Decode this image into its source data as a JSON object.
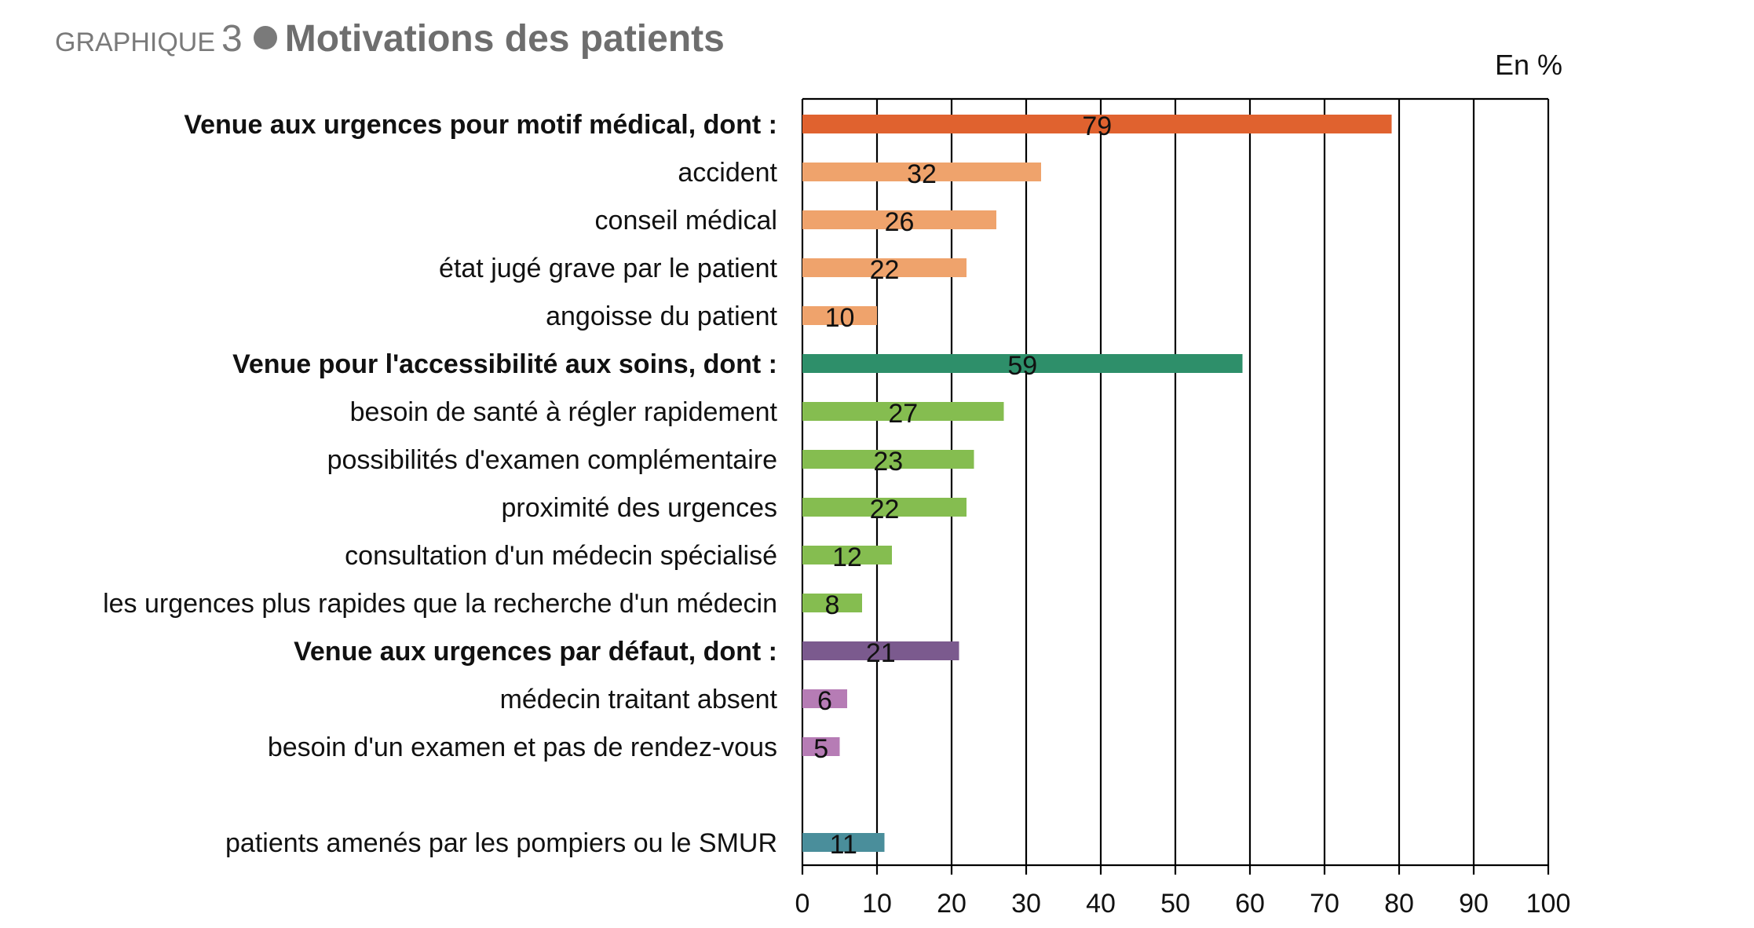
{
  "title": {
    "prefix": "GRAPHIQUE",
    "number": "3",
    "main": "Motivations des patients"
  },
  "unit": "En %",
  "colors": {
    "motif_medical_total": "#e0622f",
    "motif_medical_sub": "#efa36c",
    "accessibilite_total": "#2e8f6a",
    "accessibilite_sub": "#85bd50",
    "defaut_total": "#7b5a8e",
    "defaut_sub": "#b67cb5",
    "pompiers": "#4a8e9b"
  },
  "chart_data": {
    "type": "bar",
    "orientation": "horizontal",
    "xlim": [
      0,
      100
    ],
    "xticks": [
      0,
      10,
      20,
      30,
      40,
      50,
      60,
      70,
      80,
      90,
      100
    ],
    "grid": true,
    "categories": [
      "Venue aux urgences pour motif médical, dont :",
      "accident",
      "conseil médical",
      "état jugé grave par le patient",
      "angoisse du patient",
      "Venue pour l'accessibilité aux soins, dont :",
      "besoin de santé à régler rapidement",
      "possibilités d'examen  complémentaire",
      "proximité des urgences",
      "consultation d'un médecin spécialisé",
      "les urgences plus rapides que la recherche d'un médecin",
      "Venue aux urgences par défaut, dont :",
      "médecin traitant absent",
      "besoin d'un examen et pas de rendez-vous",
      "patients amenés par les pompiers ou le SMUR"
    ],
    "values": [
      79,
      32,
      26,
      22,
      10,
      59,
      27,
      23,
      22,
      12,
      8,
      21,
      6,
      5,
      11
    ],
    "bold": [
      true,
      false,
      false,
      false,
      false,
      true,
      false,
      false,
      false,
      false,
      false,
      true,
      false,
      false,
      false
    ],
    "color_keys": [
      "motif_medical_total",
      "motif_medical_sub",
      "motif_medical_sub",
      "motif_medical_sub",
      "motif_medical_sub",
      "accessibilite_total",
      "accessibilite_sub",
      "accessibilite_sub",
      "accessibilite_sub",
      "accessibilite_sub",
      "accessibilite_sub",
      "defaut_total",
      "defaut_sub",
      "defaut_sub",
      "pompiers"
    ],
    "gap_before": [
      false,
      false,
      false,
      false,
      false,
      false,
      false,
      false,
      false,
      false,
      false,
      false,
      false,
      false,
      true
    ]
  }
}
